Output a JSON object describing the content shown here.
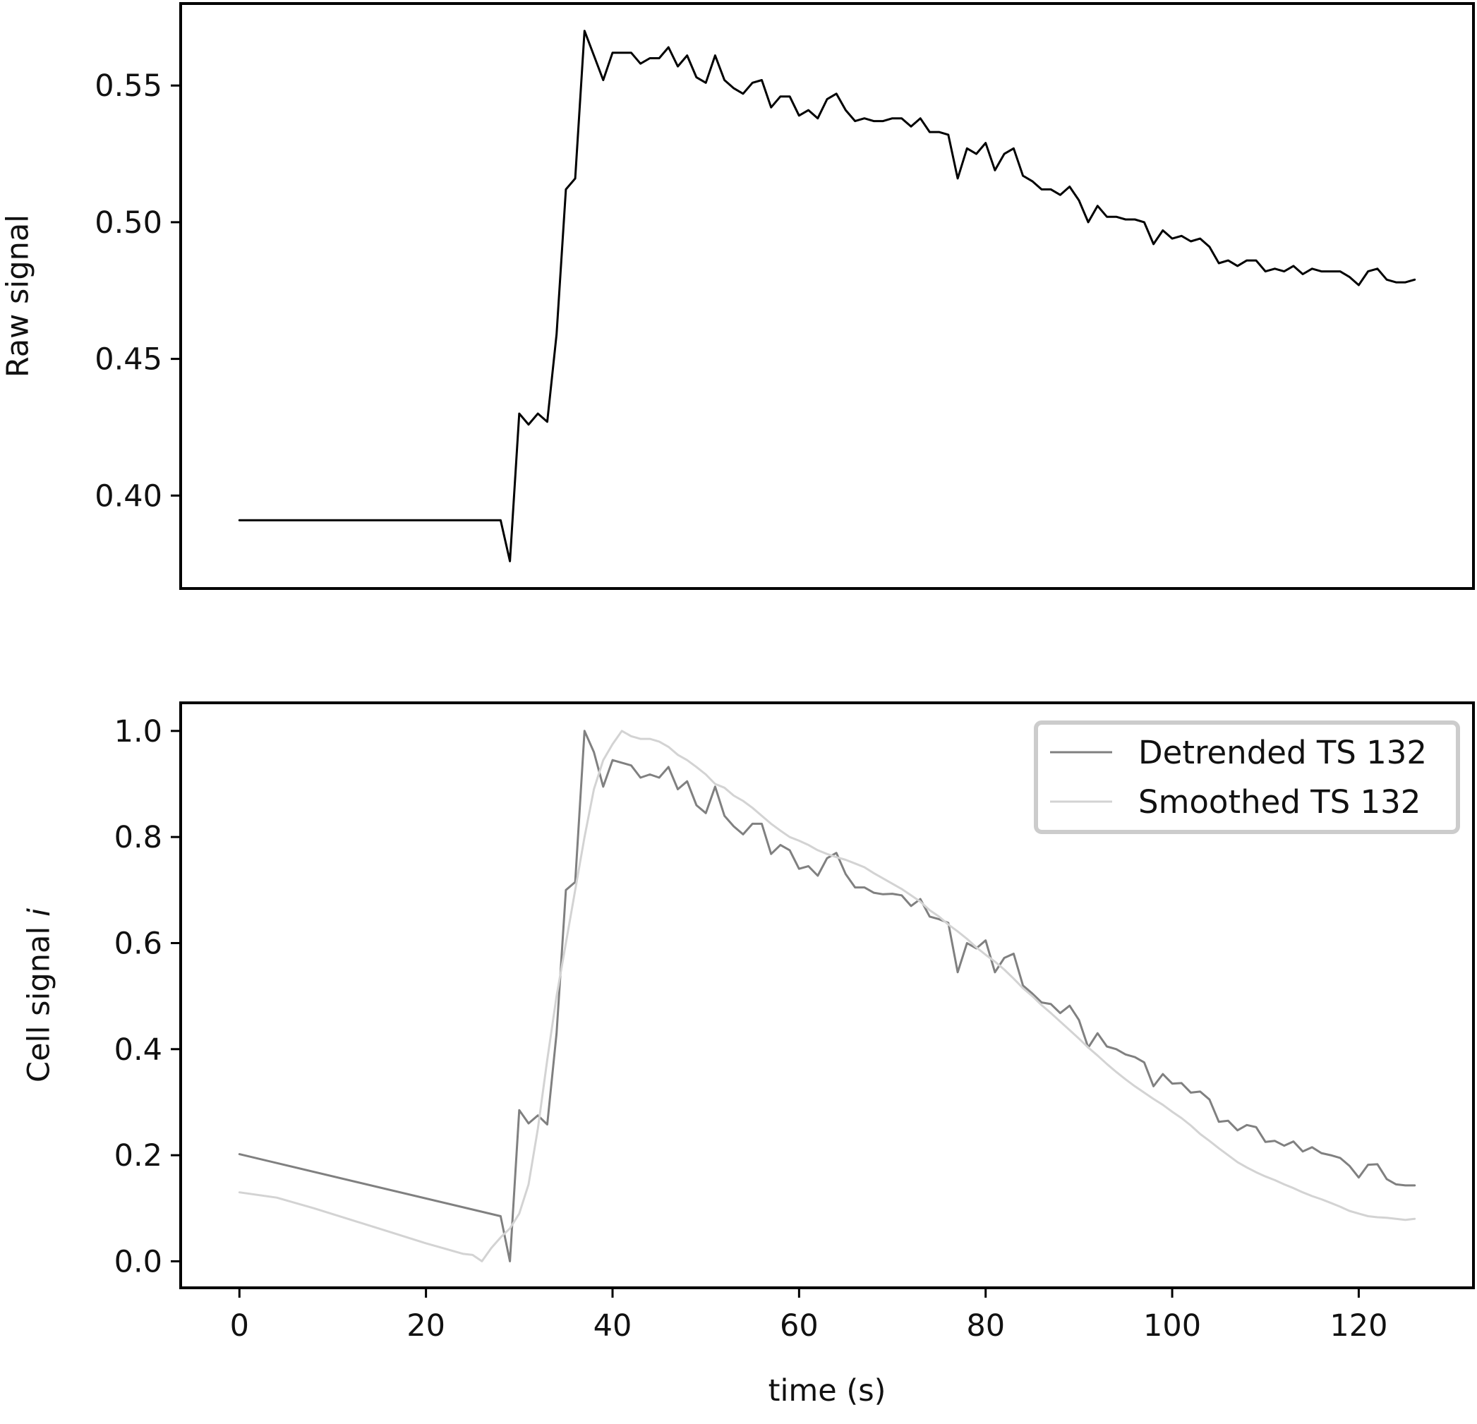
{
  "chart_data": [
    {
      "type": "line",
      "title": "",
      "xlabel": "",
      "ylabel": "Raw signal",
      "xlim": [
        -6.3,
        132.3
      ],
      "ylim": [
        0.366,
        0.58
      ],
      "xticks": [],
      "yticks": [
        {
          "value": 0.4,
          "label": "0.40"
        },
        {
          "value": 0.45,
          "label": "0.45"
        },
        {
          "value": 0.5,
          "label": "0.50"
        },
        {
          "value": 0.55,
          "label": "0.55"
        }
      ],
      "legend": null,
      "grid": false,
      "series": [
        {
          "color": "#000000",
          "x": [
            0,
            28,
            29,
            30,
            31,
            32,
            33,
            34,
            35,
            36,
            37,
            38,
            39,
            40,
            41,
            42,
            43,
            44,
            45,
            46,
            47,
            48,
            49,
            50,
            51,
            52,
            53,
            54,
            55,
            56,
            57,
            58,
            59,
            60,
            61,
            62,
            63,
            64,
            65,
            66,
            67,
            68,
            69,
            70,
            71,
            72,
            73,
            74,
            75,
            76,
            77,
            78,
            79,
            80,
            81,
            82,
            83,
            84,
            85,
            86,
            87,
            88,
            89,
            90,
            91,
            92,
            93,
            94,
            95,
            96,
            97,
            98,
            99,
            100,
            101,
            102,
            103,
            104,
            105,
            106,
            107,
            108,
            109,
            110,
            111,
            112,
            113,
            114,
            115,
            116,
            117,
            118,
            119,
            120,
            121,
            122,
            123,
            124,
            125,
            126
          ],
          "y": [
            0.391,
            0.391,
            0.376,
            0.43,
            0.426,
            0.43,
            0.427,
            0.459,
            0.512,
            0.516,
            0.57,
            0.561,
            0.552,
            0.562,
            0.562,
            0.562,
            0.558,
            0.56,
            0.56,
            0.564,
            0.557,
            0.561,
            0.553,
            0.551,
            0.561,
            0.552,
            0.549,
            0.547,
            0.551,
            0.552,
            0.542,
            0.546,
            0.546,
            0.539,
            0.541,
            0.538,
            0.545,
            0.547,
            0.541,
            0.537,
            0.538,
            0.537,
            0.537,
            0.538,
            0.538,
            0.535,
            0.538,
            0.533,
            0.533,
            0.532,
            0.516,
            0.527,
            0.525,
            0.529,
            0.519,
            0.525,
            0.527,
            0.517,
            0.515,
            0.512,
            0.512,
            0.51,
            0.513,
            0.508,
            0.5,
            0.506,
            0.502,
            0.502,
            0.501,
            0.501,
            0.5,
            0.492,
            0.497,
            0.494,
            0.495,
            0.493,
            0.494,
            0.491,
            0.485,
            0.486,
            0.484,
            0.486,
            0.486,
            0.482,
            0.483,
            0.482,
            0.484,
            0.481,
            0.483,
            0.482,
            0.482,
            0.482,
            0.48,
            0.477,
            0.482,
            0.483,
            0.479,
            0.478,
            0.478,
            0.479
          ]
        }
      ]
    },
    {
      "type": "line",
      "title": "",
      "xlabel": "time (s)",
      "ylabel": "Cell signal",
      "ylabel_italic_suffix": "i",
      "xlim": [
        -6.3,
        132.3
      ],
      "ylim": [
        -0.05,
        1.053
      ],
      "xticks": [
        {
          "value": 0,
          "label": "0"
        },
        {
          "value": 20,
          "label": "20"
        },
        {
          "value": 40,
          "label": "40"
        },
        {
          "value": 60,
          "label": "60"
        },
        {
          "value": 80,
          "label": "80"
        },
        {
          "value": 100,
          "label": "100"
        },
        {
          "value": 120,
          "label": "120"
        }
      ],
      "yticks": [
        {
          "value": 0.0,
          "label": "0.0"
        },
        {
          "value": 0.2,
          "label": "0.2"
        },
        {
          "value": 0.4,
          "label": "0.4"
        },
        {
          "value": 0.6,
          "label": "0.6"
        },
        {
          "value": 0.8,
          "label": "0.8"
        },
        {
          "value": 1.0,
          "label": "1.0"
        }
      ],
      "legend": "top-right",
      "grid": false,
      "series": [
        {
          "name": "Detrended TS 132",
          "color": "#808080",
          "x": [
            0,
            28,
            29,
            30,
            31,
            32,
            33,
            34,
            35,
            36,
            37,
            38,
            39,
            40,
            41,
            42,
            43,
            44,
            45,
            46,
            47,
            48,
            49,
            50,
            51,
            52,
            53,
            54,
            55,
            56,
            57,
            58,
            59,
            60,
            61,
            62,
            63,
            64,
            65,
            66,
            67,
            68,
            69,
            70,
            71,
            72,
            73,
            74,
            75,
            76,
            77,
            78,
            79,
            80,
            81,
            82,
            83,
            84,
            85,
            86,
            87,
            88,
            89,
            90,
            91,
            92,
            93,
            94,
            95,
            96,
            97,
            98,
            99,
            100,
            101,
            102,
            103,
            104,
            105,
            106,
            107,
            108,
            109,
            110,
            111,
            112,
            113,
            114,
            115,
            116,
            117,
            118,
            119,
            120,
            121,
            122,
            123,
            124,
            125,
            126
          ],
          "y": [
            0.202,
            0.085,
            0.0,
            0.285,
            0.26,
            0.275,
            0.258,
            0.43,
            0.7,
            0.715,
            1.0,
            0.96,
            0.895,
            0.945,
            0.94,
            0.935,
            0.912,
            0.918,
            0.912,
            0.932,
            0.89,
            0.905,
            0.86,
            0.845,
            0.895,
            0.84,
            0.82,
            0.805,
            0.825,
            0.825,
            0.768,
            0.785,
            0.775,
            0.74,
            0.745,
            0.727,
            0.76,
            0.77,
            0.73,
            0.705,
            0.705,
            0.695,
            0.692,
            0.693,
            0.69,
            0.67,
            0.683,
            0.65,
            0.645,
            0.638,
            0.545,
            0.6,
            0.59,
            0.605,
            0.545,
            0.572,
            0.58,
            0.52,
            0.505,
            0.488,
            0.485,
            0.468,
            0.482,
            0.455,
            0.403,
            0.43,
            0.405,
            0.4,
            0.39,
            0.385,
            0.375,
            0.33,
            0.353,
            0.335,
            0.336,
            0.318,
            0.32,
            0.305,
            0.263,
            0.265,
            0.247,
            0.257,
            0.253,
            0.225,
            0.227,
            0.218,
            0.226,
            0.207,
            0.215,
            0.204,
            0.2,
            0.195,
            0.18,
            0.158,
            0.182,
            0.183,
            0.155,
            0.145,
            0.143,
            0.143
          ]
        },
        {
          "name": "Smoothed TS 132",
          "color": "#d3d3d3",
          "x": [
            0,
            4,
            8,
            12,
            16,
            20,
            24,
            25,
            26,
            27,
            28,
            29,
            30,
            31,
            32,
            33,
            34,
            35,
            36,
            37,
            38,
            39,
            40,
            41,
            42,
            43,
            44,
            45,
            46,
            47,
            48,
            49,
            50,
            51,
            52,
            53,
            54,
            55,
            56,
            57,
            58,
            59,
            60,
            61,
            62,
            63,
            64,
            65,
            66,
            67,
            68,
            69,
            70,
            71,
            72,
            73,
            74,
            75,
            76,
            77,
            78,
            79,
            80,
            81,
            82,
            83,
            84,
            85,
            86,
            87,
            88,
            89,
            90,
            91,
            92,
            93,
            94,
            95,
            96,
            97,
            98,
            99,
            100,
            101,
            102,
            103,
            104,
            105,
            106,
            107,
            108,
            109,
            110,
            111,
            112,
            113,
            114,
            115,
            116,
            117,
            118,
            119,
            120,
            121,
            122,
            123,
            124,
            125,
            126
          ],
          "y": [
            0.13,
            0.12,
            0.1,
            0.078,
            0.056,
            0.034,
            0.014,
            0.012,
            0.0,
            0.025,
            0.045,
            0.062,
            0.09,
            0.145,
            0.25,
            0.38,
            0.5,
            0.6,
            0.7,
            0.8,
            0.89,
            0.945,
            0.975,
            1.0,
            0.99,
            0.985,
            0.985,
            0.98,
            0.97,
            0.955,
            0.945,
            0.932,
            0.918,
            0.9,
            0.893,
            0.878,
            0.868,
            0.855,
            0.84,
            0.825,
            0.812,
            0.8,
            0.793,
            0.785,
            0.775,
            0.768,
            0.762,
            0.757,
            0.75,
            0.743,
            0.732,
            0.722,
            0.712,
            0.702,
            0.69,
            0.678,
            0.662,
            0.65,
            0.635,
            0.622,
            0.608,
            0.592,
            0.578,
            0.565,
            0.55,
            0.533,
            0.515,
            0.5,
            0.483,
            0.468,
            0.452,
            0.436,
            0.42,
            0.403,
            0.388,
            0.372,
            0.357,
            0.343,
            0.33,
            0.318,
            0.306,
            0.295,
            0.282,
            0.27,
            0.256,
            0.24,
            0.227,
            0.213,
            0.2,
            0.187,
            0.177,
            0.168,
            0.16,
            0.153,
            0.145,
            0.138,
            0.13,
            0.123,
            0.117,
            0.11,
            0.103,
            0.095,
            0.09,
            0.085,
            0.083,
            0.082,
            0.08,
            0.078,
            0.08
          ]
        }
      ]
    }
  ]
}
